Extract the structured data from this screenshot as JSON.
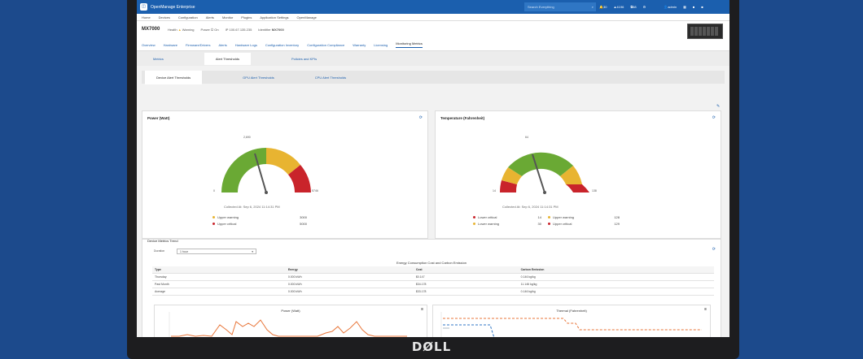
{
  "app": {
    "title": "OpenManage Enterprise",
    "search_placeholder": "Search Everything"
  },
  "topbar_icons": [
    {
      "icon": "bell-icon",
      "count": "30"
    },
    {
      "icon": "alert-icon",
      "count": "4196"
    },
    {
      "icon": "job-icon",
      "count": "58"
    },
    {
      "icon": "gear-icon",
      "count": ""
    },
    {
      "icon": "user-icon",
      "count": "admin"
    }
  ],
  "menu": [
    "Home",
    "Devices",
    "Configuration",
    "Alerts",
    "Monitor",
    "Plugins",
    "Application Settings",
    "OpenManage"
  ],
  "device": {
    "name": "MX7000",
    "health_label": "Health",
    "health": "Warning",
    "power_label": "Power",
    "power": "On",
    "ip_label": "IP",
    "ip": "100.67.135.235",
    "identifier_label": "Identifier",
    "identifier": "MX7000"
  },
  "tabs": [
    "Overview",
    "Hardware",
    "Firmware/Drivers",
    "Alerts",
    "Hardware Logs",
    "Configuration Inventory",
    "Configuration Compliance",
    "Warranty",
    "Licensing",
    "Monitoring Metrics"
  ],
  "active_tab": 9,
  "subtabs": [
    "Metrics",
    "Alert Thresholds",
    "Policies and KPIs"
  ],
  "active_subtab": 1,
  "innertabs": [
    "Device Alert Thresholds",
    "GPU Alert Thresholds",
    "CPU Alert Thresholds"
  ],
  "active_innertab": 0,
  "power_panel": {
    "title": "Power (Watt)",
    "gauge_value_fraction": 0.42,
    "scale_min": "0",
    "scale_max": "5746",
    "scale_mid": "2,690",
    "collected": "Collected At:  Sep 6, 2024 11:14:31 PM",
    "legend": [
      {
        "label": "Upper warning",
        "value": "3000",
        "color": "#e8b431"
      },
      {
        "label": "Upper critical",
        "value": "5000",
        "color": "#c9242b"
      }
    ]
  },
  "temp_panel": {
    "title": "Temperature (Fahrenheit)",
    "gauge_value_fraction": 0.38,
    "scale_min": "14",
    "scale_max": "138",
    "scale_mid": "64",
    "collected": "Collected At:  Sep 6, 2024 11:14:31 PM",
    "legend_left": [
      {
        "label": "Lower critical",
        "value": "14",
        "color": "#c9242b"
      },
      {
        "label": "Lower warning",
        "value": "30",
        "color": "#e8b431"
      }
    ],
    "legend_right": [
      {
        "label": "Upper warning",
        "value": "128",
        "color": "#e8b431"
      },
      {
        "label": "Upper critical",
        "value": "129",
        "color": "#c9242b"
      }
    ]
  },
  "metrics_panel": {
    "title": "Device Metrics Trend",
    "duration_label": "Duration",
    "duration_value": "1 hour",
    "table_title": "Energy Consumption Cost and Carbon Emission",
    "headers": [
      "Type",
      "Energy",
      "Cost",
      "Carbon Emission"
    ],
    "rows": [
      [
        "Thursday",
        "0.000 kWh",
        "$0.147",
        "0.146 kg/kg"
      ],
      [
        "Past Month",
        "0.000 kWh",
        "$34.178",
        "11.146 kg/kg"
      ],
      [
        "Average",
        "0.000 kWh",
        "$33.178",
        "0.146 kg/kg"
      ]
    ]
  },
  "power_chart": {
    "title": "Power (Watt)"
  },
  "thermal_chart": {
    "title": "Thermal (Fahrenheit)"
  },
  "brand_footer": "DØLL",
  "colors": {
    "green": "#6aa934",
    "yellow": "#e8b431",
    "red": "#c9242b",
    "blue": "#1b5fae",
    "orange": "#e8763a"
  }
}
